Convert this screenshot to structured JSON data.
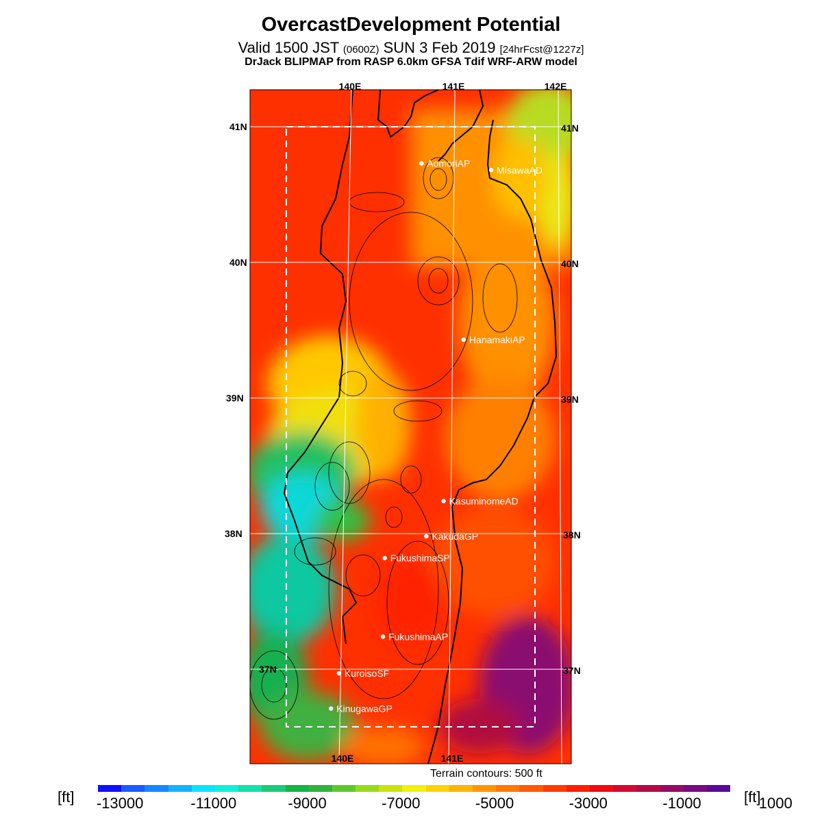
{
  "title": "OvercastDevelopment Potential",
  "subtitle": {
    "main_a": "Valid 1500 JST",
    "small_a": "(0600Z)",
    "main_b": "SUN 3 Feb 2019",
    "small_b": "[24hrFcst@1227z]"
  },
  "model_line": "DrJack BLIPMAP from RASP 6.0km GFSA Tdif WRF-ARW model",
  "map": {
    "lon_labels": [
      "140E",
      "141E",
      "142E"
    ],
    "lat_labels": [
      "41N",
      "40N",
      "39N",
      "38N",
      "37N"
    ],
    "stations": [
      {
        "name": "AomoriAP",
        "lon": 140.69,
        "lat": 40.73
      },
      {
        "name": "MisawaAD",
        "lon": 141.37,
        "lat": 40.68
      },
      {
        "name": "HanamakiAP",
        "lon": 141.14,
        "lat": 39.43
      },
      {
        "name": "KasuminomeAD",
        "lon": 140.98,
        "lat": 38.24
      },
      {
        "name": "KakudaGP",
        "lon": 140.82,
        "lat": 37.98
      },
      {
        "name": "FukushimaSP",
        "lon": 140.42,
        "lat": 37.82
      },
      {
        "name": "FukushimaAP",
        "lon": 140.42,
        "lat": 37.24
      },
      {
        "name": "KuroisoSF",
        "lon": 140.0,
        "lat": 36.97
      },
      {
        "name": "KinugawaGP",
        "lon": 139.93,
        "lat": 36.71
      }
    ]
  },
  "terrain_note": "Terrain contours: 500 ft",
  "colorbar": {
    "unit_left": "[ft]",
    "unit_right": "[ft]",
    "tick_labels": [
      "-13000",
      "-11000",
      "-9000",
      "-7000",
      "-5000",
      "-3000",
      "-1000",
      "1000"
    ],
    "colors": [
      "#1010ff",
      "#1a5cff",
      "#1488ff",
      "#10b4ff",
      "#0ce4ff",
      "#10f0d8",
      "#14e0a8",
      "#18cc78",
      "#14b446",
      "#30b43c",
      "#60c82c",
      "#94dc18",
      "#c8e40c",
      "#f0f00c",
      "#ffd200",
      "#ffb400",
      "#ff9600",
      "#ff7800",
      "#ff5a00",
      "#ff3c00",
      "#ff1e00",
      "#f00a14",
      "#d20a32",
      "#b40a46",
      "#960a64",
      "#780a82",
      "#5a0a96"
    ]
  }
}
